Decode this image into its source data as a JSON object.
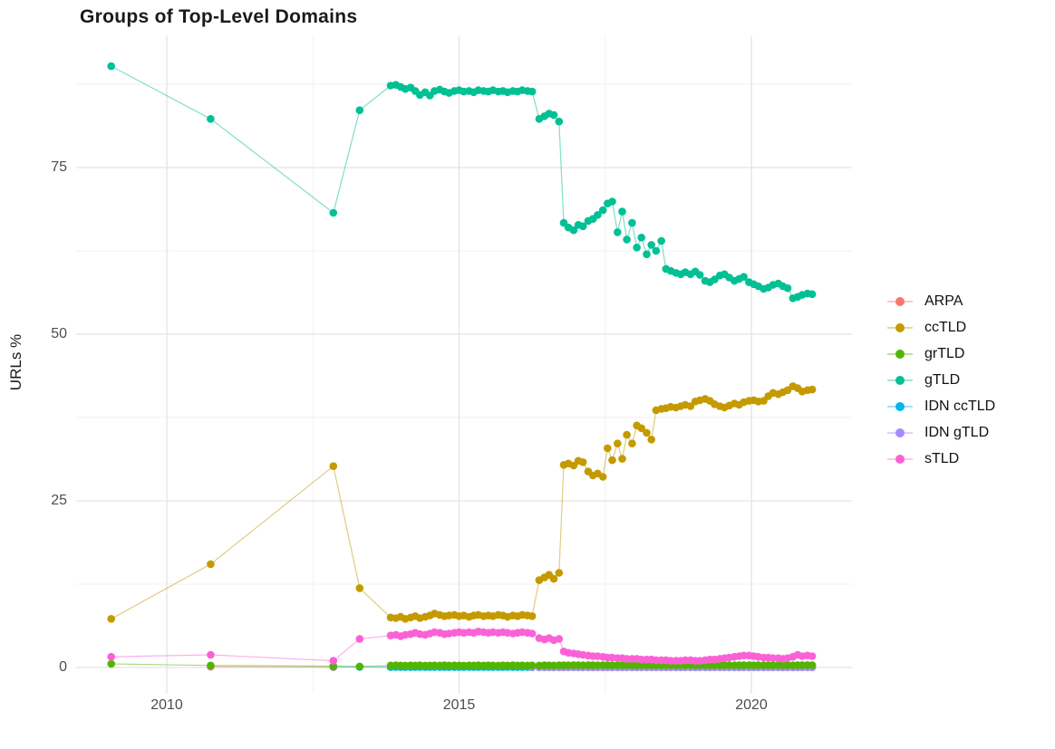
{
  "chart_data": {
    "type": "line",
    "title": "Groups of Top-Level Domains",
    "ylabel": "URLs %",
    "xlabel": "",
    "grid": true,
    "legend_position": "right",
    "xlim": [
      2008.4,
      2021.7
    ],
    "ylim": [
      -4,
      94
    ],
    "x_ticks": [
      2010,
      2015,
      2020
    ],
    "y_ticks": [
      0,
      25,
      50,
      75
    ],
    "x_minor": [
      2012.5,
      2017.5
    ],
    "y_minor": [
      12.5,
      37.5,
      62.5,
      87.5
    ],
    "x_dense": [
      2013.83,
      2013.92,
      2014.0,
      2014.08,
      2014.17,
      2014.25,
      2014.33,
      2014.42,
      2014.5,
      2014.58,
      2014.67,
      2014.75,
      2014.83,
      2014.92,
      2015.0,
      2015.08,
      2015.17,
      2015.25,
      2015.33,
      2015.42,
      2015.5,
      2015.58,
      2015.67,
      2015.75,
      2015.83,
      2015.92,
      2016.0,
      2016.08,
      2016.17,
      2016.25,
      2016.37,
      2016.46,
      2016.54,
      2016.62,
      2016.71,
      2016.79,
      2016.87,
      2016.96,
      2017.04,
      2017.12,
      2017.21,
      2017.29,
      2017.37,
      2017.46,
      2017.54,
      2017.62,
      2017.71,
      2017.79,
      2017.87,
      2017.96,
      2018.04,
      2018.12,
      2018.21,
      2018.29,
      2018.37,
      2018.46,
      2018.54,
      2018.62,
      2018.71,
      2018.79,
      2018.87,
      2018.96,
      2019.04,
      2019.12,
      2019.21,
      2019.29,
      2019.37,
      2019.46,
      2019.54,
      2019.62,
      2019.71,
      2019.79,
      2019.87,
      2019.96,
      2020.04,
      2020.12,
      2020.21,
      2020.29,
      2020.37,
      2020.46,
      2020.54,
      2020.62,
      2020.71,
      2020.79,
      2020.87,
      2020.96,
      2021.04
    ],
    "series": [
      {
        "name": "ARPA",
        "color": "#F8766D",
        "early": [
          [
            2010.75,
            0.12
          ],
          [
            2012.85,
            0.06
          ]
        ],
        "dense": null
      },
      {
        "name": "ccTLD",
        "color": "#C49A00",
        "early": [
          [
            2009.05,
            7.3
          ],
          [
            2010.75,
            15.5
          ],
          [
            2012.85,
            30.2
          ],
          [
            2013.3,
            11.9
          ]
        ],
        "dense": [
          7.5,
          7.4,
          7.6,
          7.3,
          7.5,
          7.7,
          7.4,
          7.6,
          7.8,
          8.1,
          7.9,
          7.7,
          7.8,
          7.9,
          7.7,
          7.8,
          7.6,
          7.8,
          7.9,
          7.7,
          7.8,
          7.7,
          7.9,
          7.8,
          7.6,
          7.8,
          7.7,
          7.9,
          7.8,
          7.7,
          13.1,
          13.5,
          13.9,
          13.3,
          14.2,
          30.4,
          30.6,
          30.3,
          31.0,
          30.8,
          29.4,
          28.8,
          29.1,
          28.6,
          32.9,
          31.1,
          33.6,
          31.3,
          34.9,
          33.6,
          36.3,
          35.9,
          35.2,
          34.2,
          38.6,
          38.8,
          38.9,
          39.1,
          39.0,
          39.2,
          39.4,
          39.2,
          39.9,
          40.1,
          40.3,
          40.0,
          39.5,
          39.2,
          39.0,
          39.3,
          39.6,
          39.4,
          39.8,
          40.0,
          40.1,
          39.9,
          40.0,
          40.7,
          41.2,
          41.0,
          41.3,
          41.6,
          42.2,
          41.9,
          41.4,
          41.6,
          41.7
        ]
      },
      {
        "name": "grTLD",
        "color": "#53B400",
        "early": [
          [
            2009.05,
            0.55
          ],
          [
            2010.75,
            0.3
          ],
          [
            2012.85,
            0.2
          ],
          [
            2013.3,
            0.15
          ]
        ],
        "dense": [
          0.3,
          0.32,
          0.3,
          0.28,
          0.31,
          0.3,
          0.32,
          0.29,
          0.3,
          0.31,
          0.3,
          0.32,
          0.3,
          0.31,
          0.3,
          0.29,
          0.31,
          0.3,
          0.32,
          0.3,
          0.31,
          0.3,
          0.29,
          0.31,
          0.3,
          0.32,
          0.3,
          0.31,
          0.3,
          0.31,
          0.3,
          0.32,
          0.31,
          0.3,
          0.32,
          0.34,
          0.33,
          0.35,
          0.35,
          0.34,
          0.36,
          0.35,
          0.34,
          0.35,
          0.36,
          0.35,
          0.34,
          0.35,
          0.36,
          0.35,
          0.34,
          0.35,
          0.36,
          0.35,
          0.34,
          0.35,
          0.36,
          0.35,
          0.34,
          0.35,
          0.36,
          0.35,
          0.34,
          0.35,
          0.36,
          0.35,
          0.34,
          0.35,
          0.36,
          0.35,
          0.34,
          0.35,
          0.36,
          0.35,
          0.34,
          0.35,
          0.36,
          0.35,
          0.34,
          0.35,
          0.36,
          0.35,
          0.34,
          0.35,
          0.36,
          0.35,
          0.35
        ]
      },
      {
        "name": "gTLD",
        "color": "#00C094",
        "early": [
          [
            2009.05,
            90.2
          ],
          [
            2010.75,
            82.3
          ],
          [
            2012.85,
            68.2
          ],
          [
            2013.3,
            83.6
          ]
        ],
        "dense": [
          87.3,
          87.4,
          87.1,
          86.8,
          87.0,
          86.5,
          85.9,
          86.3,
          85.8,
          86.5,
          86.7,
          86.4,
          86.2,
          86.5,
          86.6,
          86.4,
          86.5,
          86.3,
          86.6,
          86.5,
          86.4,
          86.6,
          86.4,
          86.5,
          86.3,
          86.5,
          86.4,
          86.6,
          86.5,
          86.4,
          82.3,
          82.7,
          83.1,
          82.9,
          81.9,
          66.7,
          66.0,
          65.6,
          66.4,
          66.2,
          67.0,
          67.3,
          67.9,
          68.6,
          69.6,
          69.9,
          65.3,
          68.4,
          64.2,
          66.7,
          63.0,
          64.5,
          62.0,
          63.4,
          62.5,
          64.0,
          59.8,
          59.5,
          59.2,
          59.0,
          59.3,
          59.0,
          59.4,
          58.9,
          58.0,
          57.8,
          58.2,
          58.8,
          59.0,
          58.5,
          58.0,
          58.3,
          58.6,
          57.8,
          57.5,
          57.2,
          56.8,
          57.0,
          57.4,
          57.6,
          57.2,
          56.9,
          55.4,
          55.6,
          55.9,
          56.1,
          56.0
        ]
      },
      {
        "name": "IDN ccTLD",
        "color": "#00B6EB",
        "early": [
          [
            2012.85,
            0.12
          ],
          [
            2013.3,
            0.08
          ]
        ],
        "dense": [
          0.06,
          0.06,
          0.06,
          0.06,
          0.06,
          0.06,
          0.06,
          0.06,
          0.06,
          0.06,
          0.06,
          0.06,
          0.06,
          0.06,
          0.06,
          0.06,
          0.06,
          0.06,
          0.06,
          0.06,
          0.06,
          0.06,
          0.06,
          0.06,
          0.06,
          0.06,
          0.06,
          0.06,
          0.06,
          0.06,
          0.06,
          0.06,
          0.06,
          0.06,
          0.06,
          0.06,
          0.06,
          0.06,
          0.06,
          0.06,
          0.06,
          0.06,
          0.06,
          0.06,
          0.06,
          0.06,
          0.06,
          0.06,
          0.06,
          0.06,
          0.06,
          0.06,
          0.06,
          0.06,
          0.06,
          0.06,
          0.06,
          0.06,
          0.06,
          0.06,
          0.06,
          0.06,
          0.06,
          0.06,
          0.06,
          0.06,
          0.06,
          0.06,
          0.06,
          0.06,
          0.06,
          0.06,
          0.06,
          0.06,
          0.06,
          0.06,
          0.06,
          0.06,
          0.06,
          0.06,
          0.06,
          0.06,
          0.06,
          0.06,
          0.06,
          0.06,
          0.06
        ]
      },
      {
        "name": "IDN gTLD",
        "color": "#A58AFF",
        "early": null,
        "dense": [
          null,
          null,
          null,
          null,
          null,
          null,
          null,
          null,
          null,
          null,
          null,
          null,
          null,
          null,
          null,
          null,
          null,
          null,
          null,
          null,
          null,
          null,
          null,
          null,
          null,
          null,
          null,
          null,
          null,
          0.03,
          0.03,
          0.03,
          0.03,
          0.03,
          0.03,
          0.03,
          0.03,
          0.03,
          0.03,
          0.03,
          0.03,
          0.03,
          0.03,
          0.03,
          0.03,
          0.03,
          0.03,
          0.03,
          0.03,
          0.03,
          0.03,
          0.03,
          0.03,
          0.03,
          0.03,
          0.03,
          0.03,
          0.03,
          0.03,
          0.03,
          0.03,
          0.03,
          0.03,
          0.03,
          0.03,
          0.03,
          0.03,
          0.03,
          0.03,
          0.03,
          0.03,
          0.03,
          0.03,
          0.03,
          0.03,
          0.03,
          0.03,
          0.03,
          0.03,
          0.03,
          0.03,
          0.03,
          0.03,
          0.03,
          0.03,
          0.03,
          0.03
        ]
      },
      {
        "name": "sTLD",
        "color": "#FB61D7",
        "early": [
          [
            2009.05,
            1.6
          ],
          [
            2010.75,
            1.9
          ],
          [
            2012.85,
            1.0
          ],
          [
            2013.3,
            4.3
          ]
        ],
        "dense": [
          4.8,
          4.9,
          4.7,
          4.9,
          5.0,
          5.2,
          5.0,
          4.9,
          5.1,
          5.3,
          5.2,
          5.0,
          5.1,
          5.2,
          5.3,
          5.2,
          5.3,
          5.2,
          5.4,
          5.3,
          5.2,
          5.3,
          5.2,
          5.3,
          5.2,
          5.1,
          5.2,
          5.3,
          5.2,
          5.1,
          4.4,
          4.2,
          4.4,
          4.1,
          4.3,
          2.4,
          2.2,
          2.1,
          2.0,
          1.9,
          1.8,
          1.7,
          1.7,
          1.6,
          1.5,
          1.5,
          1.4,
          1.4,
          1.3,
          1.3,
          1.3,
          1.2,
          1.2,
          1.2,
          1.1,
          1.1,
          1.1,
          1.0,
          1.0,
          1.0,
          1.1,
          1.1,
          1.0,
          1.0,
          1.1,
          1.2,
          1.2,
          1.3,
          1.4,
          1.5,
          1.6,
          1.7,
          1.8,
          1.8,
          1.7,
          1.6,
          1.5,
          1.5,
          1.4,
          1.4,
          1.3,
          1.4,
          1.6,
          1.9,
          1.7,
          1.8,
          1.7
        ]
      }
    ]
  }
}
